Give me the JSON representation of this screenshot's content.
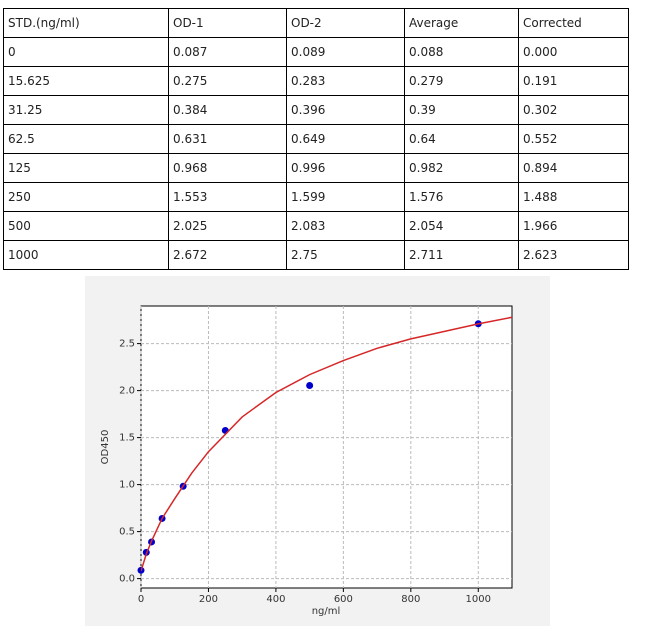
{
  "table": {
    "header": [
      "STD.(ng/ml)",
      "OD-1",
      "OD-2",
      "Average",
      "Corrected"
    ],
    "rows": [
      [
        "0",
        "0.087",
        "0.089",
        "0.088",
        "0.000"
      ],
      [
        "15.625",
        "0.275",
        "0.283",
        "0.279",
        "0.191"
      ],
      [
        "31.25",
        "0.384",
        "0.396",
        "0.39",
        "0.302"
      ],
      [
        "62.5",
        "0.631",
        "0.649",
        "0.64",
        "0.552"
      ],
      [
        "125",
        "0.968",
        "0.996",
        "0.982",
        "0.894"
      ],
      [
        "250",
        "1.553",
        "1.599",
        "1.576",
        "1.488"
      ],
      [
        "500",
        "2.025",
        "2.083",
        "2.054",
        "1.966"
      ],
      [
        "1000",
        "2.672",
        "2.75",
        "2.711",
        "2.623"
      ]
    ]
  },
  "chart_data": {
    "type": "scatter",
    "x_label": "ng/ml",
    "y_label": "OD450",
    "xlim": [
      0,
      1100
    ],
    "ylim": [
      -0.1,
      2.9
    ],
    "xticks": [
      0,
      200,
      400,
      600,
      800,
      1000
    ],
    "yticks": [
      {
        "value": 0,
        "label": "0.0"
      },
      0.5,
      {
        "value": 1,
        "label": "1.0"
      },
      1.5,
      {
        "value": 2,
        "label": "2.0"
      },
      2.5
    ],
    "grid": true,
    "series": [
      {
        "color": "#0000cc",
        "x": [
          0,
          15.625,
          31.25,
          62.5,
          125,
          250,
          500,
          1000
        ],
        "values": [
          0.088,
          0.279,
          0.39,
          0.64,
          0.982,
          1.576,
          2.054,
          2.711
        ]
      },
      {
        "type": "line",
        "color": "#d62728",
        "x": [
          0,
          15.625,
          31.25,
          62.5,
          100,
          150,
          200,
          300,
          400,
          500,
          600,
          700,
          800,
          900,
          1000,
          1100
        ],
        "values": [
          0.08,
          0.26,
          0.4,
          0.64,
          0.85,
          1.12,
          1.35,
          1.72,
          1.98,
          2.17,
          2.32,
          2.45,
          2.55,
          2.63,
          2.71,
          2.78
        ]
      }
    ]
  }
}
